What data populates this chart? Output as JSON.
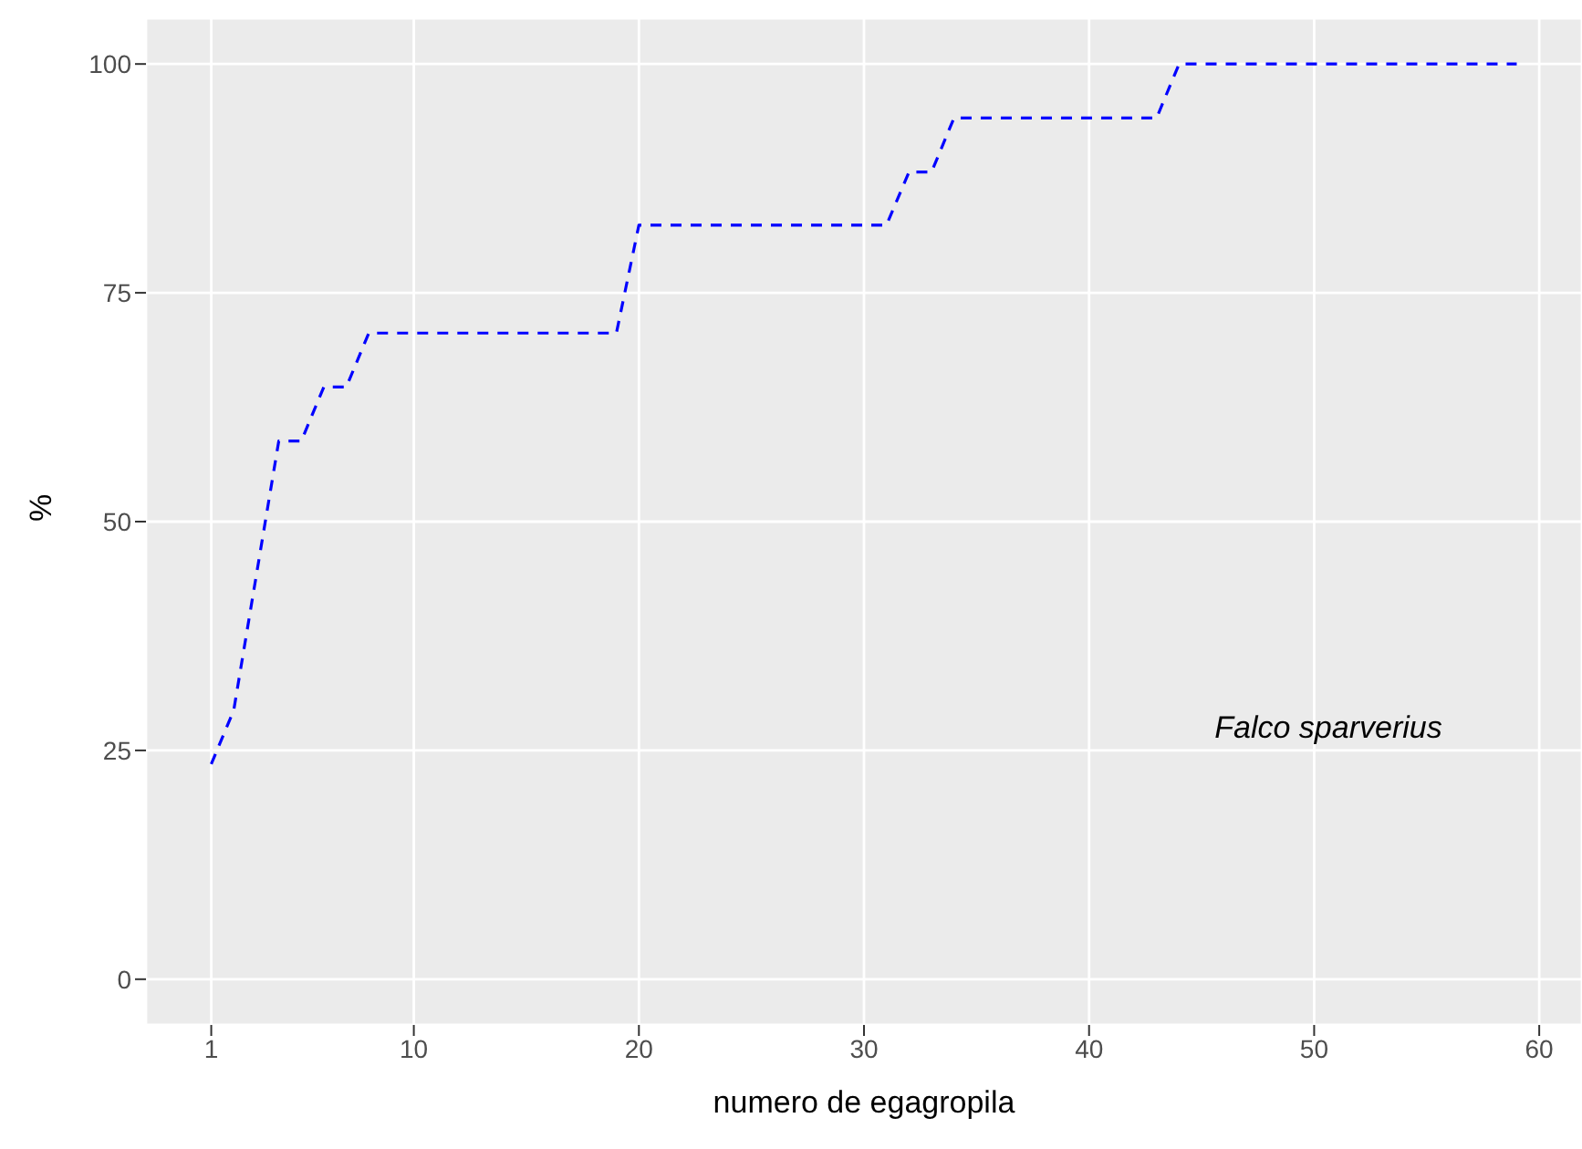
{
  "chart_data": {
    "type": "line",
    "xlabel": "numero de egagropila",
    "ylabel": "%",
    "annotations": [
      "Falco sparverius"
    ],
    "series": [
      {
        "color": "#0000ff",
        "line_style": "dashed",
        "marker": "none",
        "x": [
          1,
          2,
          4,
          5,
          6,
          7,
          8,
          19,
          20,
          31,
          32,
          33,
          34,
          43,
          44,
          59
        ],
        "values": [
          23.5,
          29.4,
          58.8,
          58.8,
          64.7,
          64.7,
          70.6,
          70.6,
          82.4,
          82.4,
          88.2,
          88.2,
          94.1,
          94.1,
          100,
          100
        ]
      }
    ],
    "xlim": [
      -1.9,
      61.9
    ],
    "xticks": [
      1,
      10,
      20,
      30,
      40,
      50,
      60
    ],
    "ylim": [
      -5,
      105
    ],
    "yticks": [
      0,
      25,
      50,
      75,
      100
    ],
    "grid": true
  }
}
